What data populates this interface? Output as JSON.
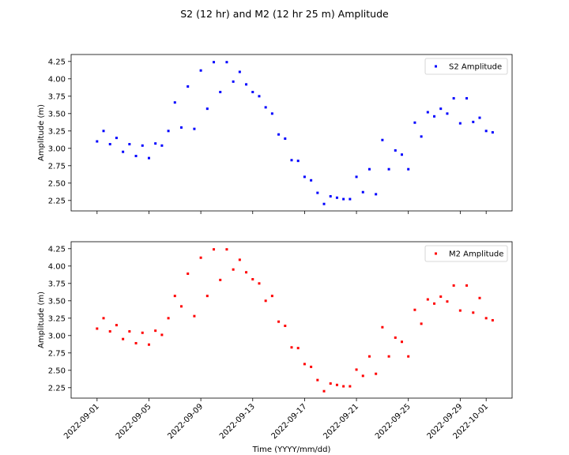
{
  "figure": {
    "title": "S2 (12 hr) and M2 (12 hr 25 m) Amplitude"
  },
  "chart_data": [
    {
      "type": "scatter",
      "title": "",
      "xlabel": "",
      "ylabel": "Amplitude (m)",
      "xlim": [
        "2022-08-30",
        "2022-10-03"
      ],
      "ylim": [
        2.1,
        4.35
      ],
      "yticks": [
        2.25,
        2.5,
        2.75,
        3.0,
        3.25,
        3.5,
        3.75,
        4.0,
        4.25
      ],
      "xticks": [
        "2022-09-01",
        "2022-09-05",
        "2022-09-09",
        "2022-09-13",
        "2022-09-17",
        "2022-09-21",
        "2022-09-25",
        "2022-09-29",
        "2022-10-01"
      ],
      "show_xtick_labels": false,
      "grid": false,
      "legend": "top-right",
      "series": [
        {
          "name": "S2 Amplitude",
          "color": "#0000ff",
          "points": [
            [
              "2022-09-01 00:00",
              3.1
            ],
            [
              "2022-09-01 12:00",
              3.25
            ],
            [
              "2022-09-02 00:00",
              3.06
            ],
            [
              "2022-09-02 12:00",
              3.15
            ],
            [
              "2022-09-03 00:00",
              2.95
            ],
            [
              "2022-09-03 12:00",
              3.06
            ],
            [
              "2022-09-04 00:00",
              2.89
            ],
            [
              "2022-09-04 12:00",
              3.04
            ],
            [
              "2022-09-05 00:00",
              2.86
            ],
            [
              "2022-09-05 12:00",
              3.07
            ],
            [
              "2022-09-06 00:00",
              3.04
            ],
            [
              "2022-09-06 12:00",
              3.25
            ],
            [
              "2022-09-07 00:00",
              3.66
            ],
            [
              "2022-09-07 12:00",
              3.3
            ],
            [
              "2022-09-08 00:00",
              3.89
            ],
            [
              "2022-09-08 12:00",
              3.28
            ],
            [
              "2022-09-09 00:00",
              4.12
            ],
            [
              "2022-09-09 12:00",
              3.57
            ],
            [
              "2022-09-10 00:00",
              4.24
            ],
            [
              "2022-09-10 12:00",
              3.81
            ],
            [
              "2022-09-11 00:00",
              4.24
            ],
            [
              "2022-09-11 12:00",
              3.96
            ],
            [
              "2022-09-12 00:00",
              4.1
            ],
            [
              "2022-09-12 12:00",
              3.92
            ],
            [
              "2022-09-13 00:00",
              3.81
            ],
            [
              "2022-09-13 12:00",
              3.75
            ],
            [
              "2022-09-14 00:00",
              3.59
            ],
            [
              "2022-09-14 12:00",
              3.5
            ],
            [
              "2022-09-15 00:00",
              3.2
            ],
            [
              "2022-09-15 12:00",
              3.14
            ],
            [
              "2022-09-16 00:00",
              2.83
            ],
            [
              "2022-09-16 12:00",
              2.82
            ],
            [
              "2022-09-17 00:00",
              2.59
            ],
            [
              "2022-09-17 12:00",
              2.54
            ],
            [
              "2022-09-18 00:00",
              2.36
            ],
            [
              "2022-09-18 12:00",
              2.2
            ],
            [
              "2022-09-19 00:00",
              2.31
            ],
            [
              "2022-09-19 12:00",
              2.29
            ],
            [
              "2022-09-20 00:00",
              2.27
            ],
            [
              "2022-09-20 12:00",
              2.27
            ],
            [
              "2022-09-21 00:00",
              2.59
            ],
            [
              "2022-09-21 12:00",
              2.37
            ],
            [
              "2022-09-22 00:00",
              2.7
            ],
            [
              "2022-09-22 12:00",
              2.34
            ],
            [
              "2022-09-23 00:00",
              3.12
            ],
            [
              "2022-09-23 12:00",
              2.7
            ],
            [
              "2022-09-24 00:00",
              2.97
            ],
            [
              "2022-09-24 12:00",
              2.91
            ],
            [
              "2022-09-25 00:00",
              2.7
            ],
            [
              "2022-09-25 12:00",
              3.37
            ],
            [
              "2022-09-26 00:00",
              3.17
            ],
            [
              "2022-09-26 12:00",
              3.52
            ],
            [
              "2022-09-27 00:00",
              3.46
            ],
            [
              "2022-09-27 12:00",
              3.57
            ],
            [
              "2022-09-28 00:00",
              3.5
            ],
            [
              "2022-09-28 12:00",
              3.72
            ],
            [
              "2022-09-29 00:00",
              3.36
            ],
            [
              "2022-09-29 12:00",
              3.72
            ],
            [
              "2022-09-30 00:00",
              3.38
            ],
            [
              "2022-09-30 12:00",
              3.44
            ],
            [
              "2022-10-01 00:00",
              3.25
            ],
            [
              "2022-10-01 12:00",
              3.23
            ]
          ]
        }
      ]
    },
    {
      "type": "scatter",
      "title": "",
      "xlabel": "Time (YYYY/mm/dd)",
      "ylabel": "Amplitude (m)",
      "xlim": [
        "2022-08-30",
        "2022-10-03"
      ],
      "ylim": [
        2.1,
        4.35
      ],
      "yticks": [
        2.25,
        2.5,
        2.75,
        3.0,
        3.25,
        3.5,
        3.75,
        4.0,
        4.25
      ],
      "xticks": [
        "2022-09-01",
        "2022-09-05",
        "2022-09-09",
        "2022-09-13",
        "2022-09-17",
        "2022-09-21",
        "2022-09-25",
        "2022-09-29",
        "2022-10-01"
      ],
      "show_xtick_labels": true,
      "grid": false,
      "legend": "top-right",
      "series": [
        {
          "name": "M2 Amplitude",
          "color": "#ff0000",
          "points": [
            [
              "2022-09-01 00:00",
              3.1
            ],
            [
              "2022-09-01 12:00",
              3.25
            ],
            [
              "2022-09-02 00:00",
              3.06
            ],
            [
              "2022-09-02 12:00",
              3.15
            ],
            [
              "2022-09-03 00:00",
              2.95
            ],
            [
              "2022-09-03 12:00",
              3.06
            ],
            [
              "2022-09-04 00:00",
              2.89
            ],
            [
              "2022-09-04 12:00",
              3.04
            ],
            [
              "2022-09-05 00:00",
              2.87
            ],
            [
              "2022-09-05 12:00",
              3.07
            ],
            [
              "2022-09-06 00:00",
              3.01
            ],
            [
              "2022-09-06 12:00",
              3.25
            ],
            [
              "2022-09-07 00:00",
              3.57
            ],
            [
              "2022-09-07 12:00",
              3.42
            ],
            [
              "2022-09-08 00:00",
              3.89
            ],
            [
              "2022-09-08 12:00",
              3.28
            ],
            [
              "2022-09-09 00:00",
              4.12
            ],
            [
              "2022-09-09 12:00",
              3.57
            ],
            [
              "2022-09-10 00:00",
              4.24
            ],
            [
              "2022-09-10 12:00",
              3.8
            ],
            [
              "2022-09-11 00:00",
              4.24
            ],
            [
              "2022-09-11 12:00",
              3.95
            ],
            [
              "2022-09-12 00:00",
              4.09
            ],
            [
              "2022-09-12 12:00",
              3.91
            ],
            [
              "2022-09-13 00:00",
              3.81
            ],
            [
              "2022-09-13 12:00",
              3.75
            ],
            [
              "2022-09-14 00:00",
              3.5
            ],
            [
              "2022-09-14 12:00",
              3.57
            ],
            [
              "2022-09-15 00:00",
              3.2
            ],
            [
              "2022-09-15 12:00",
              3.14
            ],
            [
              "2022-09-16 00:00",
              2.83
            ],
            [
              "2022-09-16 12:00",
              2.82
            ],
            [
              "2022-09-17 00:00",
              2.59
            ],
            [
              "2022-09-17 12:00",
              2.55
            ],
            [
              "2022-09-18 00:00",
              2.36
            ],
            [
              "2022-09-18 12:00",
              2.2
            ],
            [
              "2022-09-19 00:00",
              2.31
            ],
            [
              "2022-09-19 12:00",
              2.29
            ],
            [
              "2022-09-20 00:00",
              2.27
            ],
            [
              "2022-09-20 12:00",
              2.27
            ],
            [
              "2022-09-21 00:00",
              2.51
            ],
            [
              "2022-09-21 12:00",
              2.42
            ],
            [
              "2022-09-22 00:00",
              2.7
            ],
            [
              "2022-09-22 12:00",
              2.45
            ],
            [
              "2022-09-23 00:00",
              3.12
            ],
            [
              "2022-09-23 12:00",
              2.7
            ],
            [
              "2022-09-24 00:00",
              2.97
            ],
            [
              "2022-09-24 12:00",
              2.91
            ],
            [
              "2022-09-25 00:00",
              2.7
            ],
            [
              "2022-09-25 12:00",
              3.37
            ],
            [
              "2022-09-26 00:00",
              3.17
            ],
            [
              "2022-09-26 12:00",
              3.52
            ],
            [
              "2022-09-27 00:00",
              3.46
            ],
            [
              "2022-09-27 12:00",
              3.56
            ],
            [
              "2022-09-28 00:00",
              3.49
            ],
            [
              "2022-09-28 12:00",
              3.72
            ],
            [
              "2022-09-29 00:00",
              3.36
            ],
            [
              "2022-09-29 12:00",
              3.72
            ],
            [
              "2022-09-30 00:00",
              3.33
            ],
            [
              "2022-09-30 12:00",
              3.54
            ],
            [
              "2022-10-01 00:00",
              3.25
            ],
            [
              "2022-10-01 12:00",
              3.22
            ]
          ]
        }
      ]
    }
  ]
}
